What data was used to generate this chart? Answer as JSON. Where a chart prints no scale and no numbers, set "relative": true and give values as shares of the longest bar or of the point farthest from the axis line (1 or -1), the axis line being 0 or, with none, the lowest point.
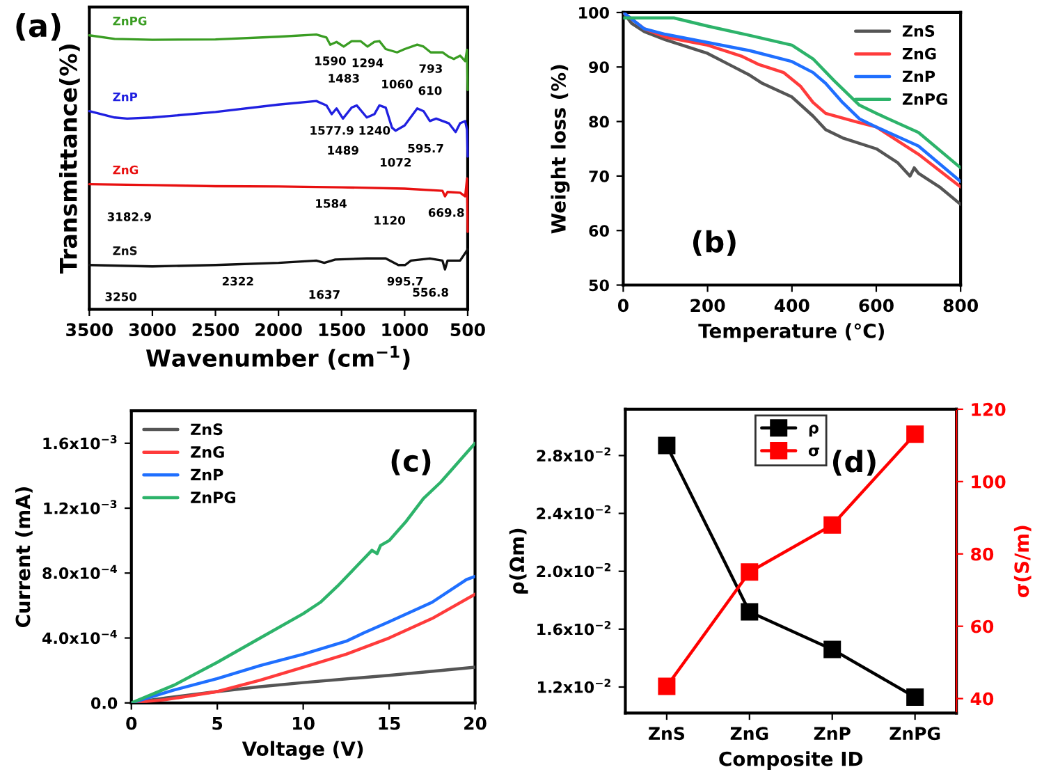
{
  "chart_data": [
    {
      "type": "line",
      "relative": true,
      "xlabel": "Wavenumber (cm$^{−1}$)",
      "ylabel": "Transmittance(%)",
      "xlim": [
        3500,
        500
      ],
      "xticks": [
        3500,
        3000,
        2500,
        2000,
        1500,
        1000,
        500
      ],
      "tick_labels": "x",
      "series": [
        {
          "name": "ZnPG",
          "color": "#3a9d23",
          "x": [
            3500,
            3300,
            3000,
            2500,
            2000,
            1700,
            1620,
            1590,
            1540,
            1483,
            1420,
            1350,
            1294,
            1240,
            1200,
            1150,
            1060,
            1000,
            900,
            850,
            793,
            700,
            650,
            610,
            560,
            520,
            505,
            500
          ],
          "values": [
            0.997,
            0.984,
            0.981,
            0.982,
            0.992,
            1.0,
            0.989,
            0.963,
            0.973,
            0.956,
            0.976,
            0.976,
            0.956,
            0.973,
            0.976,
            0.947,
            0.935,
            0.947,
            0.963,
            0.956,
            0.935,
            0.935,
            0.919,
            0.911,
            0.923,
            0.903,
            0.944,
            0.798
          ]
        },
        {
          "name": "ZnP",
          "color": "#2020e0",
          "x": [
            3500,
            3300,
            3200,
            3000,
            2500,
            2000,
            1700,
            1620,
            1577.9,
            1540,
            1489,
            1420,
            1380,
            1300,
            1240,
            1200,
            1150,
            1100,
            1072,
            1000,
            900,
            850,
            800,
            750,
            650,
            595.7,
            560,
            520,
            505,
            500
          ],
          "values": [
            0.721,
            0.698,
            0.694,
            0.698,
            0.718,
            0.745,
            0.758,
            0.742,
            0.71,
            0.731,
            0.694,
            0.734,
            0.742,
            0.698,
            0.71,
            0.742,
            0.734,
            0.661,
            0.65,
            0.669,
            0.731,
            0.721,
            0.685,
            0.694,
            0.677,
            0.645,
            0.677,
            0.685,
            0.653,
            0.556
          ]
        },
        {
          "name": "ZnG",
          "color": "#e81010",
          "x": [
            3500,
            3000,
            2500,
            2000,
            1500,
            1000,
            700,
            680,
            660,
            560,
            520,
            505,
            500
          ],
          "values": [
            0.455,
            0.452,
            0.448,
            0.447,
            0.444,
            0.439,
            0.431,
            0.411,
            0.427,
            0.424,
            0.411,
            0.476,
            0.282
          ]
        },
        {
          "name": "ZnS",
          "color": "#111111",
          "x": [
            3500,
            3000,
            2500,
            2000,
            1700,
            1637,
            1550,
            1300,
            1150,
            1050,
            995.7,
            950,
            800,
            700,
            680,
            660,
            560,
            500
          ],
          "values": [
            0.161,
            0.156,
            0.161,
            0.169,
            0.177,
            0.169,
            0.181,
            0.185,
            0.185,
            0.161,
            0.161,
            0.177,
            0.185,
            0.177,
            0.145,
            0.177,
            0.177,
            0.218
          ]
        }
      ],
      "annotations": [
        "(a)",
        {
          "text": "1590",
          "x": 1590,
          "y": 0.963
        },
        {
          "text": "1483",
          "x": 1483,
          "y": 0.956
        },
        {
          "text": "1294",
          "x": 1294,
          "y": 0.956
        },
        {
          "text": "1060",
          "x": 1060,
          "y": 0.935
        },
        {
          "text": "793",
          "x": 793,
          "y": 0.935
        },
        {
          "text": "610",
          "x": 610,
          "y": 0.911
        },
        {
          "text": "1577.9",
          "x": 1577.9,
          "y": 0.71
        },
        {
          "text": "1489",
          "x": 1489,
          "y": 0.694
        },
        {
          "text": "1240",
          "x": 1240,
          "y": 0.71
        },
        {
          "text": "1072",
          "x": 1072,
          "y": 0.65
        },
        {
          "text": "595.7",
          "x": 595.7,
          "y": 0.645
        },
        {
          "text": "3182.9",
          "x": 3182.9,
          "y": 0.452
        },
        {
          "text": "1584",
          "x": 1584,
          "y": 0.444
        },
        {
          "text": "1120",
          "x": 1120,
          "y": 0.439
        },
        {
          "text": "669.8",
          "x": 669.8,
          "y": 0.411
        },
        {
          "text": "3250",
          "x": 3250,
          "y": 0.161
        },
        {
          "text": "2322",
          "x": 2322,
          "y": 0.161
        },
        {
          "text": "1637",
          "x": 1637,
          "y": 0.169
        },
        {
          "text": "995.7",
          "x": 995.7,
          "y": 0.161
        },
        {
          "text": "556.8",
          "x": 556.8,
          "y": 0.177
        }
      ]
    },
    {
      "type": "line",
      "xlabel": "Temperature (°C)",
      "ylabel": "Weight loss (%)",
      "xlim": [
        0,
        800
      ],
      "xticks": [
        0,
        200,
        400,
        600,
        800
      ],
      "ylim": [
        50,
        100
      ],
      "yticks": [
        50,
        60,
        70,
        80,
        90,
        100
      ],
      "legend": "top right",
      "annotations": [
        "(b)"
      ],
      "series": [
        {
          "name": "ZnS",
          "color": "#555555",
          "x": [
            0,
            20,
            50,
            100,
            200,
            250,
            300,
            330,
            400,
            450,
            480,
            520,
            600,
            650,
            680,
            690,
            700,
            750,
            800
          ],
          "values": [
            100,
            98,
            96.5,
            95,
            92.5,
            90.5,
            88.5,
            87,
            84.5,
            81,
            78.5,
            77,
            75,
            72.5,
            70,
            71.5,
            70.5,
            68,
            64.8
          ]
        },
        {
          "name": "ZnG",
          "color": "#ff3b3b",
          "x": [
            0,
            50,
            100,
            200,
            280,
            320,
            380,
            420,
            450,
            480,
            550,
            600,
            700,
            800
          ],
          "values": [
            100,
            97,
            95.5,
            94,
            92,
            90.5,
            89,
            86.5,
            83.5,
            81.5,
            80,
            79,
            74,
            68
          ]
        },
        {
          "name": "ZnP",
          "color": "#1f6fff",
          "x": [
            0,
            50,
            100,
            200,
            300,
            400,
            450,
            480,
            520,
            560,
            600,
            700,
            800
          ],
          "values": [
            100,
            97,
            96,
            94.5,
            93,
            91,
            89,
            87,
            83.5,
            80.5,
            79,
            75.5,
            69
          ]
        },
        {
          "name": "ZnPG",
          "color": "#2db36a",
          "x": [
            0,
            120,
            200,
            300,
            400,
            450,
            500,
            560,
            600,
            700,
            800
          ],
          "values": [
            99,
            99,
            97.5,
            95.8,
            94,
            91.5,
            87.5,
            83,
            81.5,
            78,
            71.5
          ]
        }
      ]
    },
    {
      "type": "line",
      "xlabel": "Voltage (V)",
      "ylabel": "Current (mA)",
      "xlim": [
        0,
        20
      ],
      "xticks": [
        0,
        5,
        10,
        15,
        20
      ],
      "ylim": [
        0,
        0.0018
      ],
      "yticks": [
        {
          "value": 0,
          "label": "0.0"
        },
        {
          "value": 0.0004,
          "label": "4.0x10$^{−4}$"
        },
        {
          "value": 0.0008,
          "label": "8.0x10$^{−4}$"
        },
        {
          "value": 0.0012,
          "label": "1.2x10$^{−3}$"
        },
        {
          "value": 0.0016,
          "label": "1.6x10$^{−3}$"
        }
      ],
      "legend": "top left",
      "annotations": [
        "(c)"
      ],
      "series": [
        {
          "name": "ZnS",
          "color": "#555555",
          "x": [
            0,
            2,
            5,
            7.5,
            10,
            15,
            18,
            20
          ],
          "values": [
            0,
            3e-05,
            7e-05,
            0.0001,
            0.000125,
            0.00017,
            0.0002,
            0.00022
          ]
        },
        {
          "name": "ZnG",
          "color": "#ff3b3b",
          "x": [
            0,
            2,
            5,
            7.5,
            10,
            12.5,
            15,
            17.5,
            20
          ],
          "values": [
            0,
            2e-05,
            7e-05,
            0.00014,
            0.00022,
            0.0003,
            0.0004,
            0.00052,
            0.00067
          ]
        },
        {
          "name": "ZnP",
          "color": "#1f6fff",
          "x": [
            0,
            2.5,
            5,
            7.5,
            10,
            12.5,
            13.5,
            15,
            17.5,
            19.5,
            20
          ],
          "values": [
            0,
            8e-05,
            0.00015,
            0.00023,
            0.0003,
            0.00038,
            0.00043,
            0.0005,
            0.00062,
            0.00076,
            0.00078
          ]
        },
        {
          "name": "ZnPG",
          "color": "#2db36a",
          "x": [
            0,
            2.5,
            5,
            7.5,
            10,
            11,
            12,
            13,
            14,
            14.3,
            14.5,
            15,
            16,
            17,
            18,
            19,
            20
          ],
          "values": [
            0,
            0.00011,
            0.00025,
            0.0004,
            0.00055,
            0.00062,
            0.00072,
            0.00083,
            0.00094,
            0.00092,
            0.00097,
            0.001,
            0.00112,
            0.00126,
            0.00136,
            0.00148,
            0.0016
          ]
        }
      ]
    },
    {
      "type": "line",
      "xlabel": "Composite ID",
      "ylabel": "ρ(Ωm)",
      "y2label": "σ(S/m)",
      "categories": [
        "ZnS",
        "ZnG",
        "ZnP",
        "ZnPG"
      ],
      "ylim": [
        0.0102,
        0.0312
      ],
      "yticks": [
        {
          "value": 0.012,
          "label": "1.2x10$^{−2}$"
        },
        {
          "value": 0.016,
          "label": "1.6x10$^{−2}$"
        },
        {
          "value": 0.02,
          "label": "2.0x10$^{−2}$"
        },
        {
          "value": 0.024,
          "label": "2.4x10$^{−2}$"
        },
        {
          "value": 0.028,
          "label": "2.8x10$^{−2}$"
        }
      ],
      "y2lim": [
        36,
        120
      ],
      "y2ticks": [
        40,
        60,
        80,
        100,
        120
      ],
      "marker": "square",
      "legend": "top",
      "annotations": [
        "(d)"
      ],
      "series": [
        {
          "name": "ρ",
          "color": "#000000",
          "values": [
            0.0287,
            0.0172,
            0.0146,
            0.0113
          ]
        },
        {
          "name": "σ",
          "color": "#ff0000",
          "axis": "y2",
          "values": [
            43.4,
            75,
            88,
            113.1
          ]
        }
      ]
    }
  ]
}
